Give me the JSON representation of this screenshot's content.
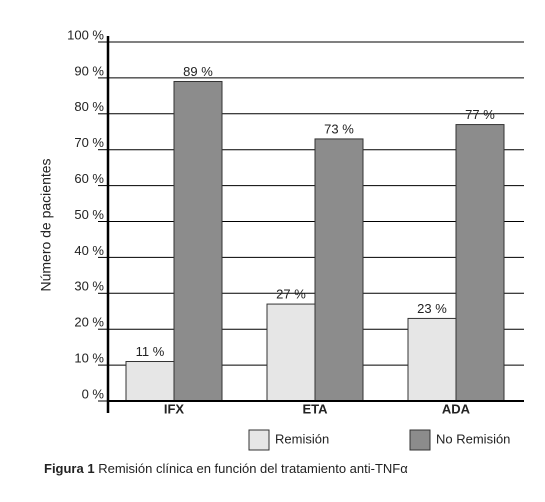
{
  "chart_data": {
    "type": "bar",
    "y_label": "Número de pacientes",
    "categories": [
      "IFX",
      "ETA",
      "ADA"
    ],
    "series": [
      {
        "name": "Remisión",
        "color": "#e6e6e6",
        "values": [
          11,
          27,
          23
        ],
        "value_labels": [
          "11 %",
          "27 %",
          "23 %"
        ]
      },
      {
        "name": "No Remisión",
        "color": "#8c8c8c",
        "values": [
          89,
          73,
          77
        ],
        "value_labels": [
          "89 %",
          "73 %",
          "77 %"
        ]
      }
    ],
    "ylim": [
      0,
      100
    ],
    "yticks": [
      {
        "value": 0,
        "label": "0 %"
      },
      {
        "value": 10,
        "label": "10 %"
      },
      {
        "value": 20,
        "label": "20 %"
      },
      {
        "value": 30,
        "label": "30 %"
      },
      {
        "value": 40,
        "label": "40 %"
      },
      {
        "value": 50,
        "label": "50 %"
      },
      {
        "value": 60,
        "label": "60 %"
      },
      {
        "value": 70,
        "label": "70 %"
      },
      {
        "value": 80,
        "label": "80 %"
      },
      {
        "value": 90,
        "label": "90 %"
      },
      {
        "value": 100,
        "label": "100 %"
      }
    ],
    "grid": true,
    "legend": "bottom",
    "caption_label": "Figura 1",
    "caption_text": "Remisión clínica en función del tratamiento anti-TNFα"
  }
}
